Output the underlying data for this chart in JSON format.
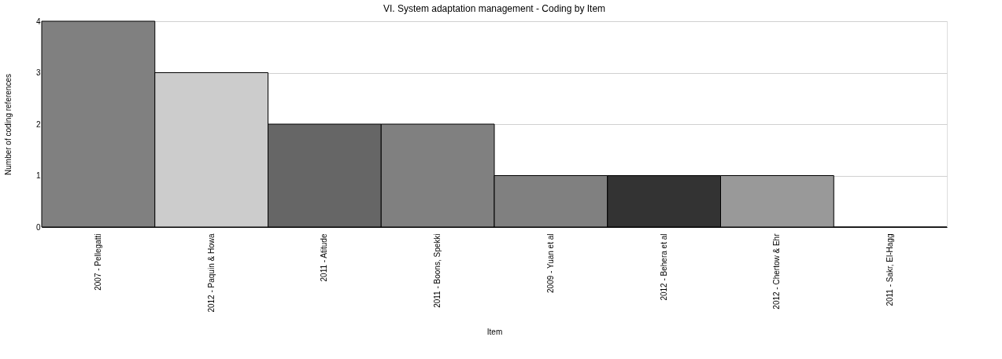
{
  "chart_data": {
    "type": "bar",
    "title": "VI. System adaptation management - Coding by Item",
    "xlabel": "Item",
    "ylabel": "Number of coding references",
    "categories": [
      "2007 - Pellegatti",
      "2012 - Paquin & Howa",
      "2011 - Atitude",
      "2011 - Boons, Spekki",
      "2009 - Yuan et al",
      "2012 - Behera et al",
      "2012 - Chertow & Ehr",
      "2011 - Sakr, El-Hagg"
    ],
    "values": [
      4,
      3,
      2,
      2,
      1,
      1,
      1,
      0
    ],
    "colors": [
      "#808080",
      "#cccccc",
      "#666666",
      "#808080",
      "#808080",
      "#333333",
      "#999999",
      "#808080"
    ],
    "ylim": [
      0,
      4
    ],
    "yticks": [
      0,
      1,
      2,
      3,
      4
    ],
    "grid": "y"
  }
}
